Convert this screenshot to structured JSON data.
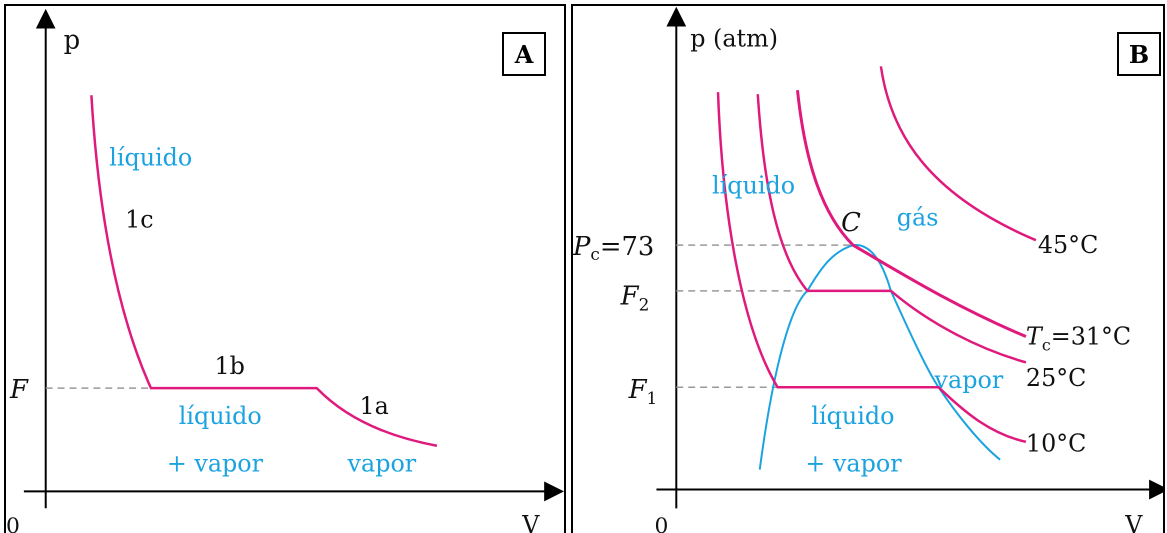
{
  "panel_a": {
    "badge": "A",
    "axis_y": "p",
    "axis_x": "V",
    "origin": "0",
    "pressure_label": "F",
    "point_1c": "1c",
    "point_1b": "1b",
    "point_1a": "1a",
    "region_liquid": "líquido",
    "region_mix_line1": "líquido",
    "region_mix_line2": "+ vapor",
    "region_vapor": "vapor"
  },
  "panel_b": {
    "badge": "B",
    "axis_y": "p (atm)",
    "axis_x": "V",
    "origin": "0",
    "pc_symbol": "P",
    "pc_sub": "c",
    "pc_value": "=73",
    "f2_symbol": "F",
    "f2_sub": "2",
    "f1_symbol": "F",
    "f1_sub": "1",
    "critical_point": "C",
    "region_gas": "gás",
    "region_liquid": "líquido",
    "region_vapor": "vapor",
    "region_mix_line1": "líquido",
    "region_mix_line2": "+ vapor",
    "iso_45": "45°C",
    "tc_symbol": "T",
    "tc_sub": "c",
    "tc_value": "=31°C",
    "iso_25": "25°C",
    "iso_10": "10°C"
  },
  "colors": {
    "isotherm": "#e0197d",
    "region_text": "#1aa3e0",
    "saturation_curve": "#1aa3e0",
    "guide_line": "#999999",
    "axes": "#000000"
  }
}
